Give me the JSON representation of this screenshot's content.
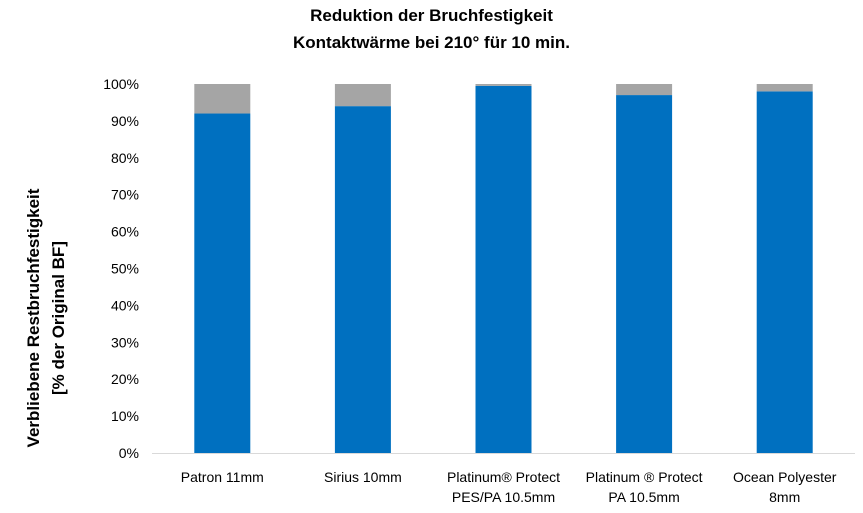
{
  "chart_data": {
    "type": "bar",
    "stacked": true,
    "title_lines": [
      "Reduktion der Bruchfestigkeit",
      "Kontaktwärme bei 210° für 10 min."
    ],
    "ylabel_lines": [
      "Verbliebene Restbruchfestigkeit",
      "[% der Original BF]"
    ],
    "xlabel": "",
    "categories": [
      [
        "Patron 11mm"
      ],
      [
        "Sirius 10mm"
      ],
      [
        "Platinum® Protect",
        "PES/PA 10.5mm"
      ],
      [
        "Platinum ® Protect",
        "PA 10.5mm"
      ],
      [
        "Ocean Polyester",
        "8mm"
      ]
    ],
    "series": [
      {
        "values": [
          92,
          94,
          99.5,
          97,
          98
        ],
        "color": "#0070c0"
      },
      {
        "values": [
          8,
          6,
          0.5,
          3,
          2
        ],
        "color": "#a5a5a5"
      }
    ],
    "ylim": [
      0,
      100
    ],
    "yticks": [
      "0%",
      "10%",
      "20%",
      "30%",
      "40%",
      "50%",
      "60%",
      "70%",
      "80%",
      "90%",
      "100%"
    ],
    "grid": false,
    "legend": "none"
  }
}
